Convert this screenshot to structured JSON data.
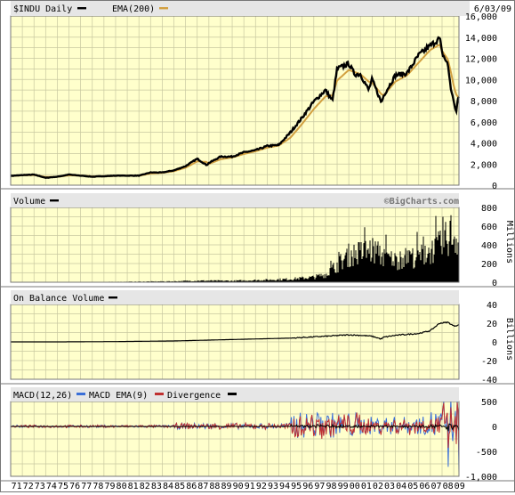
{
  "header": {
    "symbol_label": "$INDU Daily",
    "ema_label": "EMA(200)",
    "date": "6/03/09"
  },
  "watermark": "©BigCharts.com",
  "colors": {
    "plot_bg": "#ffffcc",
    "grid": "#c8c8a0",
    "strip_bg": "#e6e6e6",
    "price": "#000000",
    "ema": "#d2a040",
    "macd": "#3a6fd8",
    "signal": "#c03030",
    "divergence": "#000000"
  },
  "chart_data": [
    {
      "type": "line",
      "title": "$INDU Daily",
      "series": [
        {
          "name": "$INDU Daily",
          "x": [
            1971,
            1972,
            1973,
            1974,
            1975,
            1976,
            1977,
            1978,
            1979,
            1980,
            1981,
            1982,
            1983,
            1984,
            1985,
            1986,
            1987,
            1987.8,
            1988,
            1989,
            1990,
            1991,
            1992,
            1993,
            1994,
            1995,
            1996,
            1997,
            1998,
            1998.6,
            1999,
            2000,
            2000.5,
            2001,
            2001.7,
            2002,
            2002.8,
            2003,
            2004,
            2005,
            2006,
            2007,
            2007.8,
            2008,
            2008.5,
            2008.8,
            2009,
            2009.2,
            2009.4
          ],
          "values": [
            880,
            950,
            1000,
            700,
            800,
            1000,
            900,
            800,
            850,
            900,
            900,
            900,
            1200,
            1200,
            1400,
            1800,
            2500,
            1900,
            2100,
            2700,
            2700,
            3100,
            3300,
            3700,
            3800,
            5000,
            6400,
            7900,
            9000,
            8000,
            11000,
            11500,
            10500,
            10500,
            9000,
            10000,
            7800,
            8500,
            10400,
            10600,
            12300,
            13200,
            13900,
            12500,
            11400,
            8800,
            8000,
            6800,
            8400
          ]
        },
        {
          "name": "EMA(200)",
          "x": [
            1971,
            1972,
            1973,
            1974,
            1975,
            1976,
            1977,
            1978,
            1979,
            1980,
            1981,
            1982,
            1983,
            1984,
            1985,
            1986,
            1987,
            1987.8,
            1988,
            1989,
            1990,
            1991,
            1992,
            1993,
            1994,
            1995,
            1996,
            1997,
            1998,
            1998.6,
            1999,
            2000,
            2000.5,
            2001,
            2001.7,
            2002,
            2002.8,
            2003,
            2004,
            2005,
            2006,
            2007,
            2007.8,
            2008,
            2008.5,
            2008.8,
            2009,
            2009.2,
            2009.4
          ],
          "values": [
            870,
            930,
            960,
            780,
            790,
            930,
            910,
            830,
            850,
            880,
            890,
            890,
            1100,
            1170,
            1320,
            1650,
            2250,
            2200,
            2000,
            2450,
            2620,
            2950,
            3200,
            3550,
            3750,
            4500,
            5800,
            7200,
            8400,
            8500,
            9900,
            10900,
            10700,
            10500,
            9800,
            9700,
            8600,
            8500,
            9800,
            10400,
            11600,
            12800,
            13300,
            12700,
            11900,
            10500,
            9400,
            8600,
            8300
          ]
        }
      ],
      "ylim": [
        0,
        16000
      ],
      "y_ticks": [
        "16,000",
        "14,000",
        "12,000",
        "10,000",
        "8,000",
        "6,000",
        "4,000",
        "2,000",
        "0"
      ],
      "grid": true
    },
    {
      "type": "bar",
      "title": "Volume",
      "ylabel": "Millions",
      "series": [
        {
          "name": "Volume",
          "x": [
            1971,
            1975,
            1980,
            1985,
            1987,
            1990,
            1993,
            1995,
            1997,
            1998,
            1999,
            2000,
            2001,
            2002,
            2003,
            2004,
            2005,
            2006,
            2007,
            2008,
            2008.8,
            2009,
            2009.4
          ],
          "values": [
            2,
            3,
            5,
            12,
            20,
            18,
            30,
            40,
            65,
            100,
            220,
            350,
            380,
            420,
            330,
            280,
            320,
            330,
            400,
            480,
            650,
            600,
            540
          ]
        }
      ],
      "ylim": [
        0,
        800
      ],
      "y_ticks": [
        "800",
        "600",
        "400",
        "200",
        "0"
      ],
      "grid": true
    },
    {
      "type": "line",
      "title": "On Balance Volume",
      "ylabel": "Billions",
      "series": [
        {
          "name": "On Balance Volume",
          "x": [
            1971,
            1975,
            1980,
            1985,
            1990,
            1995,
            1998,
            2000,
            2001,
            2002,
            2002.8,
            2003,
            2004,
            2005,
            2006,
            2007,
            2007.8,
            2008.5,
            2009,
            2009.4
          ],
          "values": [
            0,
            0,
            0.3,
            1,
            2.5,
            4,
            6,
            7.5,
            7,
            6,
            3,
            5,
            7,
            8,
            9,
            12,
            20,
            21,
            17,
            18
          ]
        }
      ],
      "ylim": [
        -40,
        40
      ],
      "y_ticks": [
        "40",
        "20",
        "0",
        "-20",
        "-40"
      ],
      "grid": true
    },
    {
      "type": "line",
      "title": "MACD(12,26)",
      "series": [
        {
          "name": "MACD(12,26)"
        },
        {
          "name": "MACD EMA(9)"
        },
        {
          "name": "Divergence"
        }
      ],
      "ylim": [
        -1000,
        500
      ],
      "y_ticks": [
        "500",
        "0",
        "-500",
        "-1,000"
      ],
      "grid": true
    }
  ],
  "x_axis": {
    "labels": [
      "71",
      "72",
      "73",
      "74",
      "75",
      "76",
      "77",
      "78",
      "79",
      "80",
      "81",
      "82",
      "83",
      "84",
      "85",
      "86",
      "87",
      "88",
      "89",
      "90",
      "91",
      "92",
      "93",
      "94",
      "95",
      "96",
      "97",
      "98",
      "99",
      "00",
      "01",
      "02",
      "03",
      "04",
      "05",
      "06",
      "07",
      "08",
      "09"
    ]
  }
}
